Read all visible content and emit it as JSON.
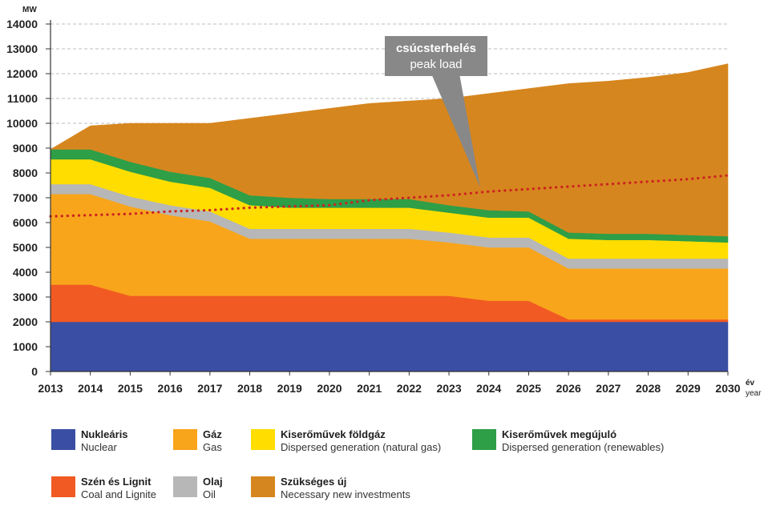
{
  "chart_data": {
    "type": "area",
    "stacked": true,
    "y_unit": "MW",
    "x_unit_hu": "év",
    "x_unit_en": "year",
    "ylim": [
      0,
      14000
    ],
    "yticks": [
      0,
      1000,
      2000,
      3000,
      4000,
      5000,
      6000,
      7000,
      8000,
      9000,
      10000,
      11000,
      12000,
      13000,
      14000
    ],
    "years": [
      2013,
      2014,
      2015,
      2016,
      2017,
      2018,
      2019,
      2020,
      2021,
      2022,
      2023,
      2024,
      2025,
      2026,
      2027,
      2028,
      2029,
      2030
    ],
    "grid": "horizontal dashed",
    "series": [
      {
        "key": "nuclear",
        "name_hu": "Nukleáris",
        "name_en": "Nuclear",
        "color": "#3a4fa3",
        "values": [
          2000,
          2000,
          2000,
          2000,
          2000,
          2000,
          2000,
          2000,
          2000,
          2000,
          2000,
          2000,
          2000,
          2000,
          2000,
          2000,
          2000,
          2000
        ]
      },
      {
        "key": "coal",
        "name_hu": "Szén és Lignit",
        "name_en": "Coal and Lignite",
        "color": "#f15a22",
        "values": [
          1500,
          1500,
          1050,
          1050,
          1050,
          1050,
          1050,
          1050,
          1050,
          1050,
          1050,
          850,
          850,
          100,
          100,
          100,
          100,
          100
        ]
      },
      {
        "key": "gas",
        "name_hu": "Gáz",
        "name_en": "Gas",
        "color": "#f8a51b",
        "values": [
          3650,
          3650,
          3600,
          3250,
          3000,
          2300,
          2300,
          2300,
          2300,
          2300,
          2150,
          2150,
          2150,
          2050,
          2050,
          2050,
          2050,
          2050
        ]
      },
      {
        "key": "oil",
        "name_hu": "Olaj",
        "name_en": "Oil",
        "color": "#b7b7b7",
        "values": [
          400,
          400,
          400,
          400,
          400,
          400,
          400,
          400,
          400,
          400,
          400,
          400,
          400,
          400,
          400,
          400,
          400,
          400
        ]
      },
      {
        "key": "dispersed_gas",
        "name_hu": "Kiserőművek földgáz",
        "name_en": "Dispersed generation (natural gas)",
        "color": "#ffdd00",
        "values": [
          1000,
          1000,
          1000,
          950,
          950,
          950,
          850,
          850,
          850,
          850,
          800,
          800,
          800,
          800,
          750,
          750,
          700,
          650
        ]
      },
      {
        "key": "dispersed_renew",
        "name_hu": "Kiserőművek megújuló",
        "name_en": "Dispersed generation (renewables)",
        "color": "#2e9e47",
        "values": [
          400,
          400,
          400,
          400,
          400,
          400,
          400,
          350,
          350,
          350,
          300,
          300,
          250,
          250,
          250,
          250,
          250,
          250
        ]
      },
      {
        "key": "new_investments",
        "name_hu": "Szükséges új",
        "name_en": "Necessary new investments",
        "color": "#d6861e",
        "values": [
          0,
          950,
          1550,
          1950,
          2200,
          3100,
          3400,
          3650,
          3850,
          3950,
          4300,
          4700,
          4950,
          6000,
          6150,
          6300,
          6550,
          6950
        ]
      }
    ],
    "peak_load": {
      "name_hu": "csúcsterhelés",
      "name_en": "peak load",
      "color": "#cc2222",
      "values": [
        6250,
        6300,
        6350,
        6450,
        6500,
        6600,
        6650,
        6700,
        6900,
        7000,
        7100,
        7250,
        7350,
        7450,
        7550,
        7650,
        7750,
        7900
      ]
    }
  },
  "legend": [
    {
      "key": "nuclear",
      "label_hu": "Nukleáris",
      "label_en": "Nuclear",
      "color": "#3a4fa3"
    },
    {
      "key": "gas",
      "label_hu": "Gáz",
      "label_en": "Gas",
      "color": "#f8a51b"
    },
    {
      "key": "dispersed_gas",
      "label_hu": "Kiserőművek földgáz",
      "label_en": "Dispersed generation (natural gas)",
      "color": "#ffdd00"
    },
    {
      "key": "dispersed_renew",
      "label_hu": "Kiserőművek megújuló",
      "label_en": "Dispersed generation (renewables)",
      "color": "#2e9e47"
    },
    {
      "key": "coal",
      "label_hu": "Szén és Lignit",
      "label_en": "Coal and Lignite",
      "color": "#f15a22"
    },
    {
      "key": "oil",
      "label_hu": "Olaj",
      "label_en": "Oil",
      "color": "#b7b7b7"
    },
    {
      "key": "new_investments",
      "label_hu": "Szükséges új",
      "label_en": "Necessary new investments",
      "color": "#d6861e"
    }
  ]
}
